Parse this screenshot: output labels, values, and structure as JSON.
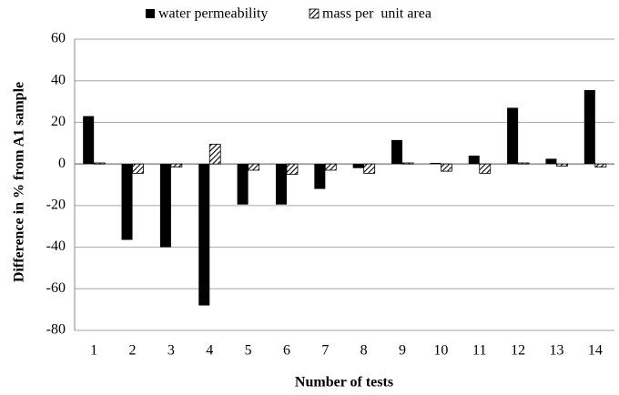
{
  "chart_data": {
    "type": "bar",
    "xlabel": "Number of tests",
    "ylabel": "Difference in % from A1  sample",
    "categories": [
      "1",
      "2",
      "3",
      "4",
      "5",
      "6",
      "7",
      "8",
      "9",
      "10",
      "11",
      "12",
      "13",
      "14"
    ],
    "series": [
      {
        "name": "water permeability",
        "color": "#000000",
        "hatch": false,
        "values": [
          23,
          -36.5,
          -40,
          -68,
          -19.5,
          -19.5,
          -12,
          -2,
          11.5,
          0.5,
          4,
          27,
          2.5,
          35.5
        ]
      },
      {
        "name": "mass per  unit area",
        "color": "#000000",
        "hatch": true,
        "values": [
          0.5,
          -4.5,
          -1.5,
          9.5,
          -3,
          -5,
          -3,
          -4.5,
          0.5,
          -3.5,
          -4.5,
          0.5,
          -1,
          -1.5
        ]
      }
    ],
    "ylim": [
      -80,
      60
    ],
    "yticks": [
      -80,
      -60,
      -40,
      -20,
      0,
      20,
      40,
      60
    ],
    "grid": true
  }
}
